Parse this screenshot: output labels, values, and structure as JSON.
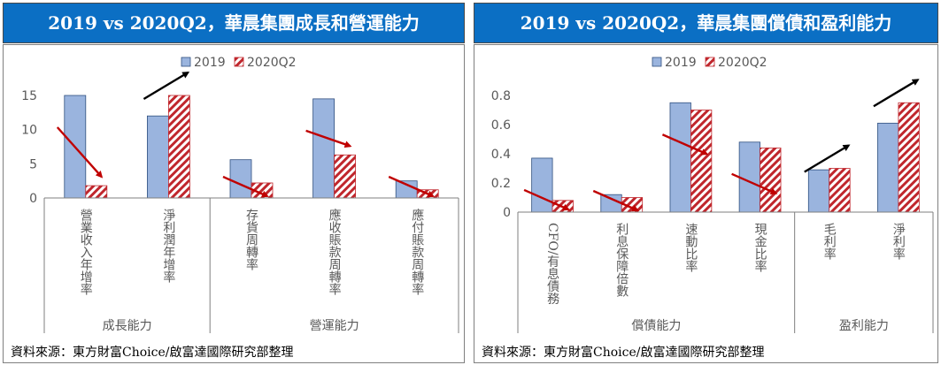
{
  "colors": {
    "title_bg": "#0b6fc4",
    "bar_2019": "#9ab4de",
    "bar_2019_edge": "#2f4f7f",
    "bar_2020_stripe": "#c0262c",
    "arrow_down": "#c00000",
    "arrow_up": "#000000",
    "axis": "#7f7f7f",
    "text": "#595959"
  },
  "panels": [
    {
      "title": "2019 vs 2020Q2，華晨集團成長和營運能力",
      "source": "資料來源：東方財富Choice/啟富達國際研究部整理",
      "chart_data": {
        "type": "bar",
        "title": "",
        "legend_position": "top",
        "categories": [
          "營業收入年增率",
          "淨利潤年增率",
          "存貨周轉率",
          "應收賬款周轉率",
          "應付賬款周轉率"
        ],
        "groups": [
          {
            "label": "成長能力",
            "count": 2
          },
          {
            "label": "營運能力",
            "count": 3
          }
        ],
        "series": [
          {
            "name": "2019",
            "values": [
              15,
              12,
              5.6,
              14.5,
              2.5
            ]
          },
          {
            "name": "2020Q2",
            "values": [
              1.8,
              15,
              2.2,
              6.3,
              1.2
            ]
          }
        ],
        "trend": [
          "down",
          "up",
          "down",
          "down",
          "down"
        ],
        "ylim": [
          0,
          15
        ],
        "yticks": [
          0,
          5,
          10,
          15
        ],
        "ytick_labels": [
          "0",
          "5",
          "10",
          "15"
        ],
        "grid": false
      }
    },
    {
      "title": "2019 vs 2020Q2，華晨集團償債和盈利能力",
      "source": "資料來源：東方財富Choice/啟富達國際研究部整理",
      "chart_data": {
        "type": "bar",
        "title": "",
        "legend_position": "top",
        "categories": [
          "CFO/有息債務",
          "利息保障倍數",
          "速動比率",
          "現金比率",
          "毛利率",
          "淨利率"
        ],
        "groups": [
          {
            "label": "償債能力",
            "count": 4
          },
          {
            "label": "盈利能力",
            "count": 2
          }
        ],
        "series": [
          {
            "name": "2019",
            "values": [
              0.37,
              0.12,
              0.75,
              0.48,
              0.29,
              0.61
            ]
          },
          {
            "name": "2020Q2",
            "values": [
              0.08,
              0.1,
              0.7,
              0.44,
              0.3,
              0.75
            ]
          }
        ],
        "trend": [
          "down",
          "down",
          "down",
          "down",
          "up",
          "up"
        ],
        "ylim": [
          0,
          0.8
        ],
        "yticks": [
          0,
          0.2,
          0.4,
          0.6,
          0.8
        ],
        "ytick_labels": [
          "0",
          "0.2",
          "0.4",
          "0.6",
          "0.8"
        ],
        "grid": false
      }
    }
  ]
}
